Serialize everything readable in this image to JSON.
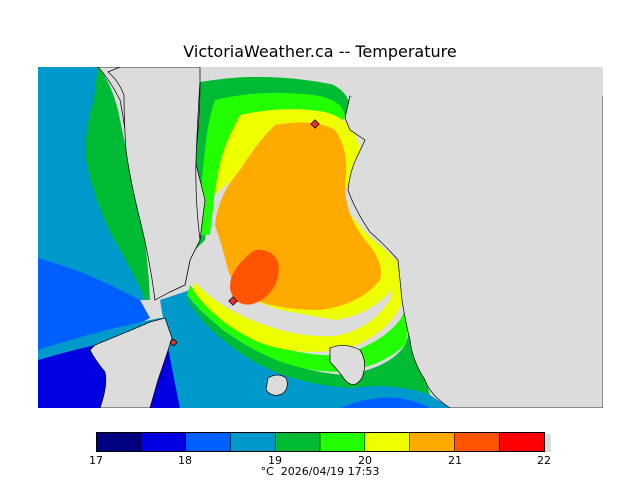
{
  "title": "VictoriaWeather.ca -- Temperature",
  "map": {
    "land_color": "#dcdcdc",
    "contour_colors": {
      "c17_0": "#000080",
      "c17_5": "#0000e0",
      "c18_0": "#0060ff",
      "c18_5": "#0099cc",
      "c19_0": "#00bb33",
      "c19_5": "#22ff00",
      "c20_0": "#eeff00",
      "c20_5": "#ffaa00",
      "c21_0": "#ff5500",
      "c21_5": "#ff0000"
    },
    "station_marker_color": "#dd3333"
  },
  "colorbar": {
    "colors": [
      "#000080",
      "#0000e0",
      "#0060ff",
      "#0099cc",
      "#00bb33",
      "#22ff00",
      "#eeff00",
      "#ffaa00",
      "#ff5500",
      "#ff0000"
    ],
    "tick_labels": [
      "17",
      "18",
      "19",
      "20",
      "21",
      "22"
    ],
    "unit": "°C",
    "timestamp": "2026/04/19 17:53"
  }
}
